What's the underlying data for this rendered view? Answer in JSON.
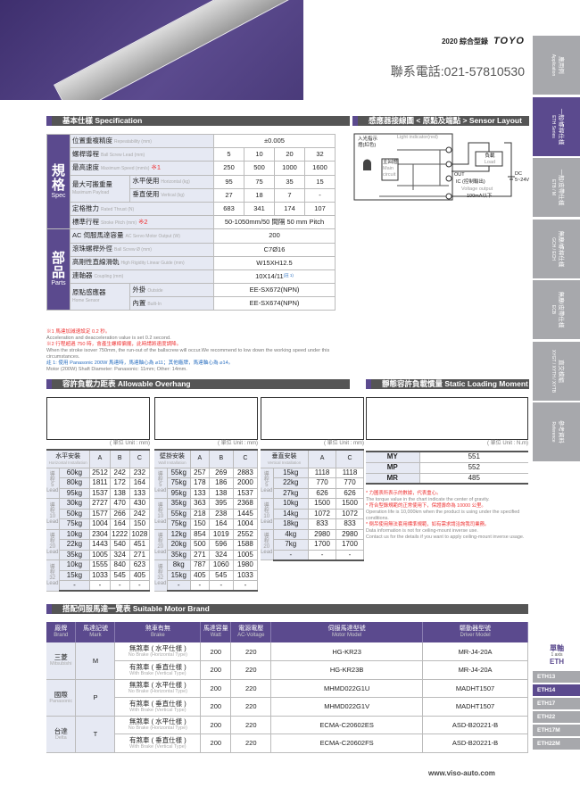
{
  "header": {
    "year_title": "2020 綜合型錄",
    "logo": "TOYO",
    "phone": "聯系電話:021-57810530",
    "website": "www.viso-auto.com"
  },
  "sidebar": [
    {
      "zh": "應用例",
      "en": "Application",
      "active": false
    },
    {
      "zh": "一般/螺桿仕樣",
      "en": "ETH Series",
      "active": true
    },
    {
      "zh": "一般/皮帶仕樣",
      "en": "ETB / M",
      "active": false
    },
    {
      "zh": "無塵/螺桿仕樣",
      "en": "GCH / ECH",
      "active": false
    },
    {
      "zh": "無塵/皮帶仕樣",
      "en": "ECB",
      "active": false
    },
    {
      "zh": "直交模組",
      "en": "XYGT / XYTH / XYTB",
      "active": false
    },
    {
      "zh": "參考資料",
      "en": "Reference",
      "active": false
    }
  ],
  "axis_nav": {
    "zh": "單軸",
    "en": "1 axis",
    "series": "ETH",
    "items": [
      {
        "label": "ETH13",
        "active": false
      },
      {
        "label": "ETH14",
        "active": true
      },
      {
        "label": "ETH17",
        "active": false
      },
      {
        "label": "ETH22",
        "active": false
      },
      {
        "label": "ETH17M",
        "active": false
      },
      {
        "label": "ETH22M",
        "active": false
      }
    ]
  },
  "spec": {
    "title": "基本仕樣 Specification",
    "spec_group": {
      "zh": "規格",
      "en": "Spec"
    },
    "parts_group": {
      "zh": "部品",
      "en": "Parts"
    },
    "rows": [
      {
        "zh": "位置重複精度",
        "en": "Repeatability (mm)",
        "values": [
          "±0.005"
        ]
      },
      {
        "zh": "螺桿導程",
        "en": "Ball Screw Lead (mm)",
        "values": [
          "5",
          "10",
          "20",
          "32"
        ]
      },
      {
        "zh": "最高速度",
        "en": "Maximum Speed (mm/s)",
        "mark": "※1",
        "values": [
          "250",
          "500",
          "1000",
          "1600"
        ]
      },
      {
        "zh": "最大可搬重量",
        "en": "Maximum Payload",
        "sub_zh": "水平使用",
        "sub_en": "Horizontal (kg)",
        "values": [
          "95",
          "75",
          "35",
          "15"
        ]
      },
      {
        "sub_zh": "垂直使用",
        "sub_en": "Vertical (kg)",
        "values": [
          "27",
          "18",
          "7",
          "-"
        ]
      },
      {
        "zh": "定格推力",
        "en": "Rated Thrust (N)",
        "values": [
          "683",
          "341",
          "174",
          "107"
        ]
      },
      {
        "zh": "標準行程",
        "en": "Stroke Pitch (mm)",
        "mark": "※2",
        "values": [
          "50-1050mm/50 間隔 50 mm Pitch"
        ]
      },
      {
        "zh": "AC 伺服馬達容量",
        "en": "AC Servo Motor Output (W)",
        "values": [
          "200"
        ]
      },
      {
        "zh": "滾珠螺桿外徑",
        "en": "Ball Screw Ø (mm)",
        "values": [
          "C7Ø16"
        ]
      },
      {
        "zh": "高剛性直線滑軌",
        "en": "High Rigidity Linear Guide (mm)",
        "values": [
          "W15XH12.5"
        ]
      },
      {
        "zh": "連軸器",
        "en": "Coupling (mm)",
        "values": [
          "10X14/11"
        ],
        "sup": "(註 1)"
      },
      {
        "zh": "原點感應器",
        "en": "Home Sensor",
        "sub_zh": "外掛",
        "sub_en": "Outside",
        "values": [
          "EE-SX672(NPN)"
        ]
      },
      {
        "sub_zh": "內置",
        "sub_en": "Built-In",
        "values": [
          "EE-SX674(NPN)"
        ]
      }
    ],
    "notes": [
      {
        "text": "※1 馬達加減速設定 0.2 秒。",
        "color": "red"
      },
      {
        "text": "Acceleration and deacceleration value is set 0.2 second.",
        "color": "gray"
      },
      {
        "text": "※2 行程超過 750 時，會產生螺桿偏擺，此時請將速度調降。",
        "color": "red"
      },
      {
        "text": "When the stroke isover 750mm, the run-out of the ballscrew will occur.We recommend to low down the working speed under this circumstances.",
        "color": "gray"
      },
      {
        "text": "註 1: 使用 Panasonic 200W 馬達時，馬達軸心為 ⌀11；其他廠牌，馬達軸心為 ⌀14。",
        "color": "blue"
      },
      {
        "text": "Motor (200W) Shaft Diameter: Panasonic: 11mm; Other: 14mm.",
        "color": "gray"
      }
    ]
  },
  "sensor": {
    "title": "感應器接線圖 < 原點及端點 > Sensor Layout",
    "light": "Light indicator(red)",
    "indicator_zh": "入光指示燈(紅色)",
    "main_zh": "主回燈",
    "main_en": "Main circuit",
    "load_zh": "負載",
    "load_en": "Load",
    "out": "OUT",
    "ic": "IC (控制輸出)",
    "vout": "Voltage output",
    "ma": "100mA以下",
    "dc": "DC 5~24V"
  },
  "overhang": {
    "title": "容許負載力距表 Allowable Overhang",
    "unit_mm": "( 單位 Unit : mm)",
    "unit_nm": "( 單位 Unit : N.m)",
    "tables": [
      {
        "zh": "水平安裝",
        "en": "Horizontal Installation",
        "cols": [
          "A",
          "B",
          "C"
        ],
        "groups": [
          {
            "lead": "導程 5 Lead",
            "rows": [
              [
                "60kg",
                "2512",
                "242",
                "232"
              ],
              [
                "80kg",
                "1811",
                "172",
                "164"
              ],
              [
                "95kg",
                "1537",
                "138",
                "133"
              ]
            ]
          },
          {
            "lead": "導程 10 Lead",
            "rows": [
              [
                "30kg",
                "2727",
                "470",
                "430"
              ],
              [
                "50kg",
                "1577",
                "266",
                "242"
              ],
              [
                "75kg",
                "1004",
                "164",
                "150"
              ]
            ]
          },
          {
            "lead": "導程 20 Lead",
            "rows": [
              [
                "10kg",
                "2304",
                "1222",
                "1028"
              ],
              [
                "22kg",
                "1443",
                "540",
                "451"
              ],
              [
                "35kg",
                "1005",
                "324",
                "271"
              ]
            ]
          },
          {
            "lead": "導程 32 Lead",
            "rows": [
              [
                "10kg",
                "1555",
                "840",
                "623"
              ],
              [
                "15kg",
                "1033",
                "545",
                "405"
              ],
              [
                "-",
                "-",
                "-",
                "-"
              ]
            ]
          }
        ]
      },
      {
        "zh": "壁掛安裝",
        "en": "Wall Installation",
        "cols": [
          "A",
          "B",
          "C"
        ],
        "groups": [
          {
            "lead": "導程 5 Lead",
            "rows": [
              [
                "55kg",
                "257",
                "269",
                "2883"
              ],
              [
                "75kg",
                "178",
                "186",
                "2000"
              ],
              [
                "95kg",
                "133",
                "138",
                "1537"
              ]
            ]
          },
          {
            "lead": "導程 10 Lead",
            "rows": [
              [
                "35kg",
                "363",
                "395",
                "2368"
              ],
              [
                "55kg",
                "218",
                "238",
                "1445"
              ],
              [
                "75kg",
                "150",
                "164",
                "1004"
              ]
            ]
          },
          {
            "lead": "導程 20 Lead",
            "rows": [
              [
                "12kg",
                "854",
                "1019",
                "2552"
              ],
              [
                "20kg",
                "500",
                "596",
                "1588"
              ],
              [
                "35kg",
                "271",
                "324",
                "1005"
              ]
            ]
          },
          {
            "lead": "導程 32 Lead",
            "rows": [
              [
                "8kg",
                "787",
                "1060",
                "1980"
              ],
              [
                "15kg",
                "405",
                "545",
                "1033"
              ],
              [
                "-",
                "-",
                "-",
                "-"
              ]
            ]
          }
        ]
      },
      {
        "zh": "垂直安裝",
        "en": "Vertical Installation",
        "cols": [
          "A",
          "C"
        ],
        "groups": [
          {
            "lead": "導程 5 Lead",
            "rows": [
              [
                "15kg",
                "1118",
                "1118"
              ],
              [
                "22kg",
                "770",
                "770"
              ],
              [
                "27kg",
                "626",
                "626"
              ]
            ]
          },
          {
            "lead": "導程 10 Lead",
            "rows": [
              [
                "10kg",
                "1500",
                "1500"
              ],
              [
                "14kg",
                "1072",
                "1072"
              ],
              [
                "18kg",
                "833",
                "833"
              ]
            ]
          },
          {
            "lead": "導程 20 Lead",
            "rows": [
              [
                "4kg",
                "2980",
                "2980"
              ],
              [
                "7kg",
                "1700",
                "1700"
              ],
              [
                "-",
                "-",
                "-"
              ]
            ]
          }
        ]
      }
    ]
  },
  "static": {
    "title": "靜態容許負載慣量 Static Loading Moment",
    "rows": [
      [
        "MY",
        "551"
      ],
      [
        "MP",
        "552"
      ],
      [
        "MR",
        "485"
      ]
    ],
    "notes": [
      {
        "text": "* 力圖表所表示的數據，代表重心。",
        "color": "red"
      },
      {
        "text": "The torque value in the chart indicate the center of gravity.",
        "color": "gray"
      },
      {
        "text": "* 符合型錄規範的正常使用下，保證壽命為 10000 公里。",
        "color": "red"
      },
      {
        "text": "Operation life is 10,000km when the product is using under the specified conditions.",
        "color": "gray"
      },
      {
        "text": "* 倒吊使用無法套用標準規範，如有需求請洽詢我司業務。",
        "color": "red"
      },
      {
        "text": "Data information is not for ceiling-mount inverse use.",
        "color": "gray"
      },
      {
        "text": "Contact us for the details if you want to apply ceiling-mount inverse usage.",
        "color": "gray"
      }
    ]
  },
  "motor": {
    "title": "搭配伺服馬達一覽表 Suitable Motor Brand",
    "headers": [
      {
        "zh": "廠牌",
        "en": "Brand"
      },
      {
        "zh": "馬達記號",
        "en": "Mark"
      },
      {
        "zh": "煞車有無",
        "en": "Brake"
      },
      {
        "zh": "馬達容量",
        "en": "Watt"
      },
      {
        "zh": "電源電壓",
        "en": "AC-Voltage"
      },
      {
        "zh": "伺服馬達型號",
        "en": "Motor Model"
      },
      {
        "zh": "驅動器型號",
        "en": "Driver Model"
      }
    ],
    "brands": [
      {
        "zh": "三菱",
        "en": "Mitsubishi",
        "mark": "M",
        "rows": [
          {
            "brake_zh": "無煞車 ( 水平仕樣 )",
            "brake_en": "No Brake (Horizontal Type)",
            "watt": "200",
            "volt": "220",
            "motor": "HG-KR23",
            "driver": "MR-J4-20A"
          },
          {
            "brake_zh": "有煞車 ( 垂直仕樣 )",
            "brake_en": "With Brake (Vertical Type)",
            "watt": "200",
            "volt": "220",
            "motor": "HG-KR23B",
            "driver": "MR-J4-20A"
          }
        ]
      },
      {
        "zh": "國際",
        "en": "Panasonic",
        "mark": "P",
        "rows": [
          {
            "brake_zh": "無煞車 ( 水平仕樣 )",
            "brake_en": "No Brake (Horizontal Type)",
            "watt": "200",
            "volt": "220",
            "motor": "MHMD022G1U",
            "driver": "MADHT1507"
          },
          {
            "brake_zh": "有煞車 ( 垂直仕樣 )",
            "brake_en": "With Brake (Vertical Type)",
            "watt": "200",
            "volt": "220",
            "motor": "MHMD022G1V",
            "driver": "MADHT1507"
          }
        ]
      },
      {
        "zh": "台達",
        "en": "Delta",
        "mark": "T",
        "rows": [
          {
            "brake_zh": "無煞車 ( 水平仕樣 )",
            "brake_en": "No Brake (Horizontal Type)",
            "watt": "200",
            "volt": "220",
            "motor": "ECMA-C20602ES",
            "driver": "ASD-B20221-B"
          },
          {
            "brake_zh": "有煞車 ( 垂直仕樣 )",
            "brake_en": "With Brake (Vertical Type)",
            "watt": "200",
            "volt": "220",
            "motor": "ECMA-C20602FS",
            "driver": "ASD-B20221-B"
          }
        ]
      }
    ]
  },
  "colors": {
    "accent": "#5b4a8e",
    "section_bar": "#555555",
    "cell_tint": "#e6e9f3",
    "note_red": "#e33333",
    "note_blue": "#2a6fc0"
  }
}
